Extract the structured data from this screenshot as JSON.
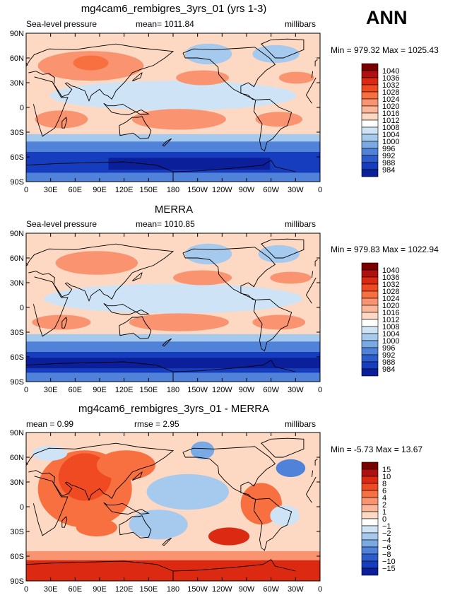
{
  "season": "ANN",
  "units": "millibars",
  "lat_labels": [
    "90N",
    "60N",
    "30N",
    "0",
    "30S",
    "60S",
    "90S"
  ],
  "lon_labels": [
    "0",
    "30E",
    "60E",
    "90E",
    "120E",
    "150E",
    "180",
    "150W",
    "120W",
    "90W",
    "60W",
    "30W",
    "0"
  ],
  "colors": {
    "ocean": "#fdd9c4",
    "land_outline": "#000000",
    "frame": "#000000"
  },
  "panels": [
    {
      "title": "mg4cam6_rembigres_3yrs_01 (yrs 1-3)",
      "left_label": "Sea-level pressure",
      "center_label": "mean= 1011.84",
      "right_label": "millibars",
      "min_max": "Min = 979.32  Max = 1025.43",
      "colorbar_labels": [
        "1040",
        "1036",
        "1032",
        "1028",
        "1024",
        "1020",
        "1016",
        "1012",
        "1008",
        "1004",
        "1000",
        "996",
        "992",
        "988",
        "984"
      ],
      "colorbar_colors": [
        "#7a0000",
        "#b01010",
        "#dc2a12",
        "#f04a22",
        "#f8703f",
        "#fa9470",
        "#fcb79a",
        "#fdd9c4",
        "#ffffff",
        "#cfe3f6",
        "#a6c9ee",
        "#7aaae4",
        "#4f82d8",
        "#2d5ccd",
        "#173dbf",
        "#0a1f99"
      ]
    },
    {
      "title": "MERRA",
      "left_label": "Sea-level pressure",
      "center_label": "mean= 1010.85",
      "right_label": "millibars",
      "min_max": "Min = 979.83  Max = 1022.94",
      "colorbar_labels": [
        "1040",
        "1036",
        "1032",
        "1028",
        "1024",
        "1020",
        "1016",
        "1012",
        "1008",
        "1004",
        "1000",
        "996",
        "992",
        "988",
        "984"
      ],
      "colorbar_colors": [
        "#7a0000",
        "#b01010",
        "#dc2a12",
        "#f04a22",
        "#f8703f",
        "#fa9470",
        "#fcb79a",
        "#fdd9c4",
        "#ffffff",
        "#cfe3f6",
        "#a6c9ee",
        "#7aaae4",
        "#4f82d8",
        "#2d5ccd",
        "#173dbf",
        "#0a1f99"
      ]
    },
    {
      "title": "mg4cam6_rembigres_3yrs_01 - MERRA",
      "left_label": "mean =     0.99",
      "center_label": "rmse =     2.95",
      "right_label": "millibars",
      "min_max": "Min =  -5.73  Max =   13.67",
      "colorbar_labels": [
        "15",
        "10",
        "8",
        "6",
        "4",
        "2",
        "1",
        "0",
        "−1",
        "−2",
        "−4",
        "−6",
        "−8",
        "−10",
        "−15"
      ],
      "colorbar_colors": [
        "#7a0000",
        "#b01010",
        "#dc2a12",
        "#f04a22",
        "#f8703f",
        "#fa9470",
        "#fcb79a",
        "#fdd9c4",
        "#ffffff",
        "#cfe3f6",
        "#a6c9ee",
        "#7aaae4",
        "#4f82d8",
        "#2d5ccd",
        "#173dbf",
        "#0a1f99"
      ]
    }
  ]
}
